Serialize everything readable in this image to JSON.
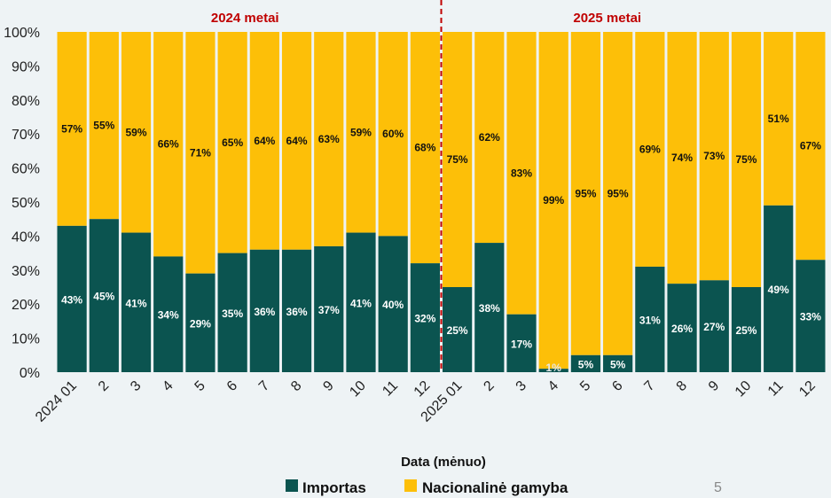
{
  "page_number": "5",
  "colors": {
    "import": "#0b5450",
    "national": "#fdbf08",
    "divider": "#c00000",
    "background": "#eef3f5"
  },
  "chart_data": {
    "type": "bar",
    "stacked": true,
    "normalized": true,
    "categories": [
      "2024 01",
      "2",
      "3",
      "4",
      "5",
      "6",
      "7",
      "8",
      "9",
      "10",
      "11",
      "12",
      "2025 01",
      "2",
      "3",
      "4",
      "5",
      "6",
      "7",
      "8",
      "9",
      "10",
      "11",
      "12"
    ],
    "series": [
      {
        "name": "Importas",
        "values": [
          43,
          45,
          41,
          34,
          29,
          35,
          36,
          36,
          37,
          41,
          40,
          32,
          25,
          38,
          17,
          1,
          5,
          5,
          31,
          26,
          27,
          25,
          49,
          33
        ],
        "labels": [
          "43%",
          "45%",
          "41%",
          "34%",
          "29%",
          "35%",
          "36%",
          "36%",
          "37%",
          "41%",
          "40%",
          "32%",
          "25%",
          "38%",
          "17%",
          "1%",
          "5%",
          "5%",
          "31%",
          "26%",
          "27%",
          "25%",
          "49%",
          "33%"
        ]
      },
      {
        "name": "Nacionalinė gamyba",
        "values": [
          57,
          55,
          59,
          66,
          71,
          65,
          64,
          64,
          63,
          59,
          60,
          68,
          75,
          62,
          83,
          99,
          95,
          95,
          69,
          74,
          73,
          75,
          51,
          67
        ],
        "labels": [
          "57%",
          "55%",
          "59%",
          "66%",
          "71%",
          "65%",
          "64%",
          "64%",
          "63%",
          "59%",
          "60%",
          "68%",
          "75%",
          "62%",
          "83%",
          "99%",
          "95%",
          "95%",
          "69%",
          "74%",
          "73%",
          "75%",
          "51%",
          "67%"
        ]
      }
    ],
    "xlabel": "Data (mėnuo)",
    "ylabel": "",
    "ylim": [
      0,
      100
    ],
    "yticks": [
      "0%",
      "10%",
      "20%",
      "30%",
      "40%",
      "50%",
      "60%",
      "70%",
      "80%",
      "90%",
      "100%"
    ],
    "periods": [
      "2024 metai",
      "2025 metai"
    ],
    "legend": [
      "Importas",
      "Nacionalinė gamyba"
    ],
    "legend_position": "bottom"
  }
}
